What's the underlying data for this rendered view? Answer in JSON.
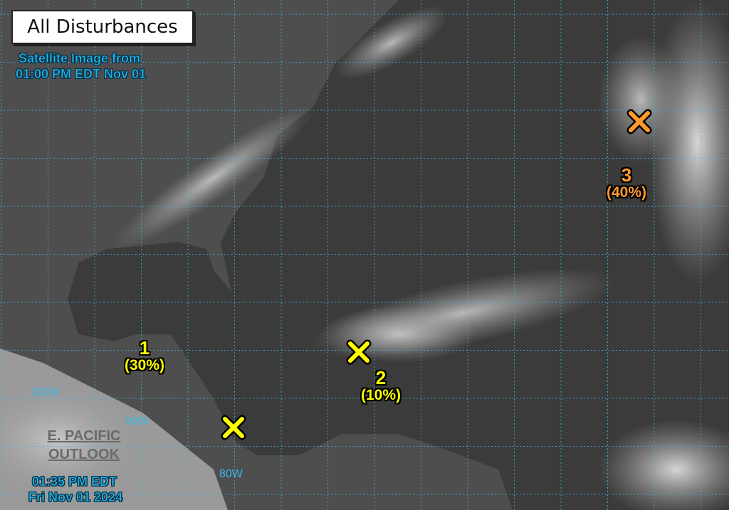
{
  "title": "All Disturbances",
  "satellite_caption": [
    "Satellite Image from",
    "01:00 PM EDT Nov 01"
  ],
  "timestamp": [
    "01:35 PM EDT",
    "Fri Nov 01 2024"
  ],
  "epac_link": [
    "E. PACIFIC",
    "OUTLOOK"
  ],
  "longitude_labels": [
    "100W",
    "90W",
    "80W"
  ],
  "disturbances": [
    {
      "number": "1",
      "chance": "(30%)",
      "color": "#ffff00"
    },
    {
      "number": "2",
      "chance": "(10%)",
      "color": "#ffff00"
    },
    {
      "number": "3",
      "chance": "(40%)",
      "color": "#ff9a2e"
    }
  ],
  "unlabeled_marker": {
    "color": "#ffff00"
  },
  "colors": {
    "grid": "#3ab8e0",
    "caption": "#1fb2e8"
  }
}
